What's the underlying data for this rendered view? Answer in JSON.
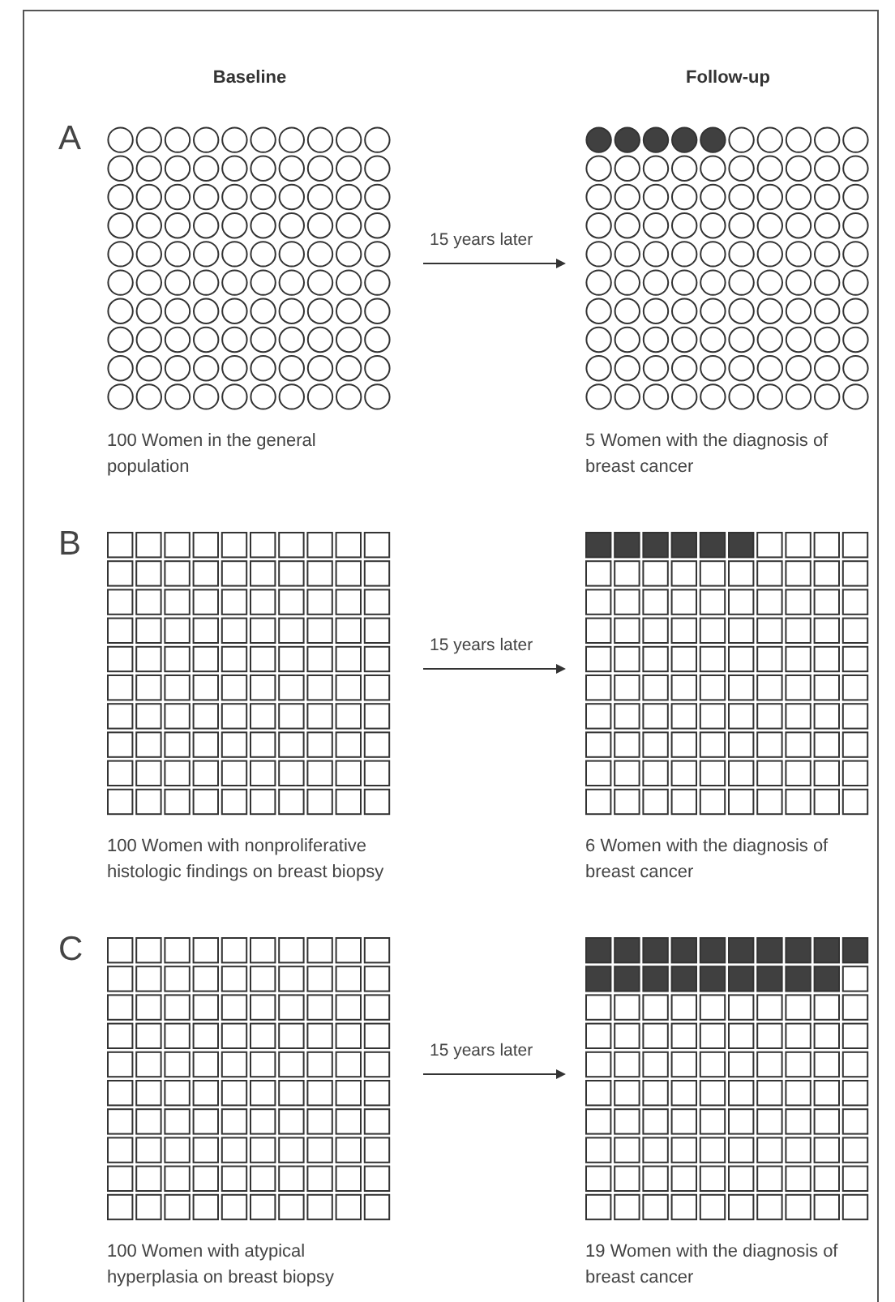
{
  "chart_data": [
    {
      "type": "other",
      "title": "A",
      "categories": [
        "Baseline",
        "Follow-up"
      ],
      "values": [
        100,
        5
      ],
      "data_labels": true,
      "color": "#404040",
      "annotations": [
        "15 years later",
        "Women in the general population",
        "Women with the diagnosis of breast cancer"
      ]
    },
    {
      "type": "other",
      "title": "B",
      "values": [
        100,
        6
      ],
      "data_labels": true,
      "color": "#404040",
      "annotations": [
        "15 years later",
        "Women with nonproliferative histologic findings on breast biopsy",
        "Women with the diagnosis of breast cancer"
      ]
    },
    {
      "type": "other",
      "title": "C",
      "values": [
        100,
        19
      ],
      "data_labels": true,
      "color": "#404040",
      "annotations": [
        "15 years later",
        "Women with atypical hyperplasia on breast biopsy",
        "Women with the diagnosis of breast cancer"
      ]
    }
  ]
}
